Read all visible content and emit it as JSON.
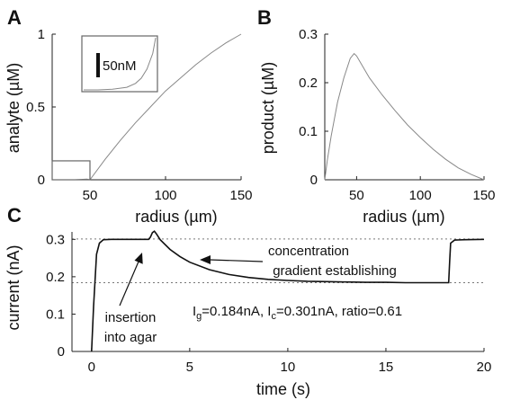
{
  "panels": {
    "A": "A",
    "B": "B",
    "C": "C"
  },
  "chart_data": [
    {
      "id": "A",
      "type": "line",
      "xlabel": "radius (µm)",
      "ylabel": "analyte (µM)",
      "xlim": [
        25,
        150
      ],
      "ylim": [
        0,
        1
      ],
      "xticks": [
        50,
        100,
        150
      ],
      "yticks": [
        0,
        0.5,
        1
      ],
      "ytick_labels": [
        "0",
        "0.5",
        "1"
      ],
      "series": [
        {
          "color": "#888888",
          "x": [
            25,
            40,
            48,
            50,
            60,
            70,
            80,
            90,
            100,
            110,
            120,
            130,
            140,
            150
          ],
          "y": [
            0.0,
            0.0,
            0.005,
            0.0,
            0.14,
            0.27,
            0.39,
            0.5,
            0.61,
            0.7,
            0.79,
            0.87,
            0.94,
            1.0
          ]
        }
      ],
      "zoom_box": {
        "x": [
          25,
          50
        ],
        "y": [
          0,
          0.13
        ]
      },
      "inset": {
        "scale_bar_label": "50nM",
        "series": [
          {
            "x": [
              25,
              30,
              35,
              40,
              43,
              45,
              47,
              49,
              50
            ],
            "y": [
              0.0,
              0.0,
              0.0005,
              0.002,
              0.005,
              0.009,
              0.016,
              0.028,
              0.04
            ]
          }
        ]
      }
    },
    {
      "id": "B",
      "type": "line",
      "xlabel": "radius (µm)",
      "ylabel": "product (µM)",
      "xlim": [
        25,
        150
      ],
      "ylim": [
        0,
        0.3
      ],
      "xticks": [
        50,
        100,
        150
      ],
      "yticks": [
        0,
        0.1,
        0.2,
        0.3
      ],
      "ytick_labels": [
        "0",
        "0.1",
        "0.2",
        "0.3"
      ],
      "series": [
        {
          "color": "#888888",
          "x": [
            25,
            27,
            30,
            35,
            40,
            45,
            48,
            50,
            60,
            70,
            80,
            90,
            100,
            110,
            120,
            130,
            140,
            150
          ],
          "y": [
            0.0,
            0.04,
            0.09,
            0.16,
            0.21,
            0.25,
            0.26,
            0.255,
            0.21,
            0.175,
            0.143,
            0.113,
            0.087,
            0.063,
            0.042,
            0.024,
            0.011,
            0.0
          ]
        }
      ]
    },
    {
      "id": "C",
      "type": "line",
      "xlabel": "time (s)",
      "ylabel": "current (nA)",
      "xlim": [
        -1,
        20
      ],
      "ylim": [
        0,
        0.32
      ],
      "xticks": [
        0,
        5,
        10,
        15,
        20
      ],
      "yticks": [
        0,
        0.1,
        0.2,
        0.3
      ],
      "ytick_labels": [
        "0",
        "0.1",
        "0.2",
        "0.3"
      ],
      "reference_lines": [
        0.301,
        0.184
      ],
      "series": [
        {
          "color": "#111111",
          "x": [
            0.0,
            0.1,
            0.25,
            0.4,
            0.6,
            1.0,
            2.0,
            2.9,
            3.0,
            3.1,
            3.2,
            3.3,
            3.5,
            4.0,
            4.5,
            5.0,
            6.0,
            7.0,
            8.0,
            9.0,
            10.0,
            11.0,
            12.0,
            13.0,
            14.0,
            15.0,
            16.0,
            17.0,
            18.2,
            18.25,
            18.3,
            18.5,
            19.0,
            20.0
          ],
          "y": [
            0.0,
            0.12,
            0.26,
            0.29,
            0.299,
            0.3,
            0.3,
            0.3,
            0.306,
            0.318,
            0.322,
            0.315,
            0.299,
            0.273,
            0.254,
            0.239,
            0.219,
            0.206,
            0.198,
            0.193,
            0.19,
            0.188,
            0.187,
            0.186,
            0.185,
            0.185,
            0.184,
            0.184,
            0.184,
            0.24,
            0.29,
            0.298,
            0.299,
            0.3
          ]
        }
      ],
      "annotations": {
        "gradient_line1": "concentration",
        "gradient_line2": "gradient establishing",
        "insertion_line1": "insertion",
        "insertion_line2": "into agar",
        "stats": {
          "ig_prefix": "I",
          "ig_sub": "g",
          "ig_value": "=0.184nA, ",
          "ic_prefix": "I",
          "ic_sub": "c",
          "ic_value": "=0.301nA, ratio=0.61"
        }
      }
    }
  ]
}
